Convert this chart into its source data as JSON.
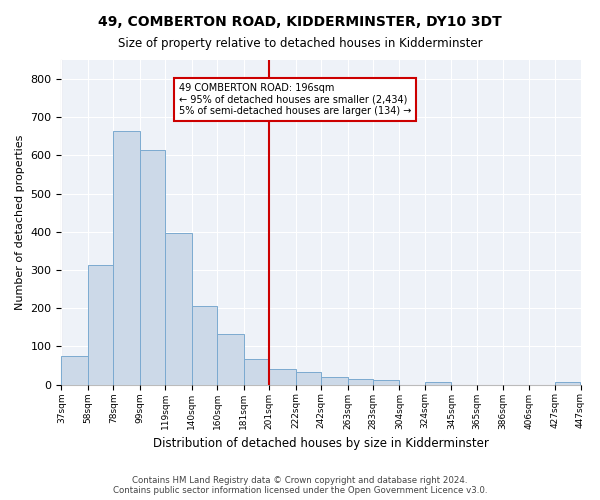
{
  "title": "49, COMBERTON ROAD, KIDDERMINSTER, DY10 3DT",
  "subtitle": "Size of property relative to detached houses in Kidderminster",
  "xlabel": "Distribution of detached houses by size in Kidderminster",
  "ylabel": "Number of detached properties",
  "bar_color": "#ccd9e8",
  "bar_edge_color": "#7baad0",
  "background_color": "#eef2f8",
  "grid_color": "#ffffff",
  "vline_x": 201,
  "vline_color": "#cc0000",
  "annotation_text": "49 COMBERTON ROAD: 196sqm\n← 95% of detached houses are smaller (2,434)\n5% of semi-detached houses are larger (134) →",
  "annotation_box_color": "#cc0000",
  "bin_edges": [
    37,
    58,
    78,
    99,
    119,
    140,
    160,
    181,
    201,
    222,
    242,
    263,
    283,
    304,
    324,
    345,
    365,
    386,
    406,
    427,
    447
  ],
  "bar_heights": [
    75,
    312,
    665,
    615,
    398,
    205,
    133,
    68,
    40,
    34,
    20,
    14,
    11,
    0,
    8,
    0,
    0,
    0,
    0,
    8
  ],
  "ylim": [
    0,
    850
  ],
  "yticks": [
    0,
    100,
    200,
    300,
    400,
    500,
    600,
    700,
    800
  ],
  "footer_text": "Contains HM Land Registry data © Crown copyright and database right 2024.\nContains public sector information licensed under the Open Government Licence v3.0.",
  "figsize": [
    6.0,
    5.0
  ],
  "dpi": 100
}
